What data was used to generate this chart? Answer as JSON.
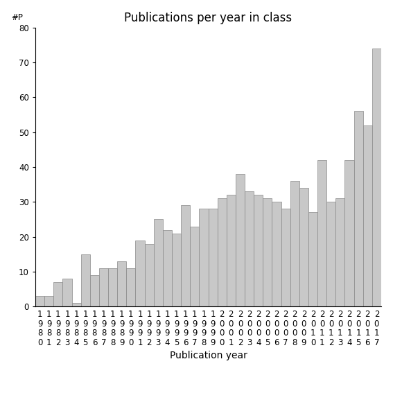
{
  "title": "Publications per year in class",
  "xlabel": "Publication year",
  "ylabel": "#P",
  "bar_color": "#c8c8c8",
  "bar_edgecolor": "#888888",
  "years": [
    1980,
    1981,
    1982,
    1983,
    1984,
    1985,
    1986,
    1987,
    1988,
    1989,
    1990,
    1991,
    1992,
    1993,
    1994,
    1995,
    1996,
    1997,
    1998,
    1999,
    2000,
    2001,
    2002,
    2003,
    2004,
    2005,
    2006,
    2007,
    2008,
    2009,
    2010,
    2011,
    2012,
    2013,
    2014,
    2015,
    2016,
    2017
  ],
  "values": [
    3,
    3,
    7,
    8,
    1,
    15,
    9,
    11,
    11,
    13,
    11,
    19,
    18,
    25,
    22,
    21,
    29,
    23,
    28,
    28,
    31,
    32,
    38,
    33,
    32,
    31,
    30,
    28,
    36,
    34,
    27,
    42,
    30,
    31,
    42,
    56,
    52,
    74
  ],
  "ylim": [
    0,
    80
  ],
  "yticks": [
    0,
    10,
    20,
    30,
    40,
    50,
    60,
    70,
    80
  ],
  "background_color": "#ffffff",
  "title_fontsize": 12,
  "axis_label_fontsize": 10,
  "tick_fontsize": 8.5
}
